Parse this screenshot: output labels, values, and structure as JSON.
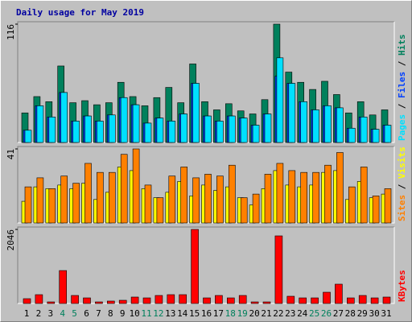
{
  "title": "Daily usage for May 2019",
  "chart_data": [
    {
      "type": "bar",
      "ylim": [
        0,
        116
      ],
      "yticks": [
        116
      ],
      "series": [
        {
          "name": "Hits",
          "color": "#00805C",
          "values": [
            29,
            45,
            40,
            75,
            39,
            41,
            37,
            39,
            59,
            45,
            36,
            44,
            54,
            39,
            77,
            40,
            32,
            38,
            31,
            28,
            42,
            116,
            69,
            59,
            52,
            60,
            47,
            29,
            40,
            27,
            32
          ]
        },
        {
          "name": "Files",
          "color": "#0040FF",
          "values": [
            12,
            36,
            25,
            49,
            21,
            26,
            21,
            27,
            44,
            37,
            19,
            24,
            21,
            28,
            58,
            26,
            21,
            26,
            24,
            17,
            28,
            65,
            58,
            40,
            32,
            36,
            34,
            14,
            25,
            13,
            17
          ]
        },
        {
          "name": "Pages",
          "color": "#00E0FF",
          "values": [
            12,
            36,
            25,
            49,
            21,
            26,
            21,
            27,
            44,
            37,
            19,
            24,
            21,
            28,
            58,
            26,
            21,
            26,
            24,
            17,
            28,
            83,
            58,
            40,
            32,
            36,
            34,
            14,
            25,
            13,
            17
          ]
        }
      ]
    },
    {
      "type": "bar",
      "ylim": [
        0,
        41
      ],
      "yticks": [
        41
      ],
      "series": [
        {
          "name": "Visits",
          "color": "#FFFF00",
          "values": [
            12,
            20,
            19,
            21,
            19,
            22,
            13,
            17,
            31,
            29,
            19,
            14,
            17,
            23,
            15,
            21,
            18,
            20,
            14,
            10,
            19,
            29,
            21,
            20,
            21,
            28,
            29,
            13,
            23,
            14,
            16
          ]
        },
        {
          "name": "Sites",
          "color": "#FF8000",
          "values": [
            20,
            25,
            19,
            26,
            22,
            33,
            28,
            28,
            38,
            41,
            21,
            14,
            26,
            31,
            25,
            27,
            26,
            32,
            14,
            16,
            27,
            33,
            29,
            28,
            28,
            32,
            39,
            20,
            31,
            15,
            19
          ]
        }
      ]
    },
    {
      "type": "bar",
      "ylim": [
        0,
        2046
      ],
      "yticks": [
        2046
      ],
      "categories": [
        "1",
        "2",
        "3",
        "4",
        "5",
        "6",
        "7",
        "8",
        "9",
        "10",
        "11",
        "12",
        "13",
        "14",
        "15",
        "16",
        "17",
        "18",
        "19",
        "20",
        "21",
        "22",
        "23",
        "24",
        "25",
        "26",
        "27",
        "28",
        "29",
        "30",
        "31"
      ],
      "category_colors": [
        "#000000",
        "#000000",
        "#000000",
        "#00805C",
        "#00805C",
        "#000000",
        "#000000",
        "#000000",
        "#000000",
        "#000000",
        "#00805C",
        "#00805C",
        "#000000",
        "#000000",
        "#000000",
        "#000000",
        "#000000",
        "#00805C",
        "#00805C",
        "#000000",
        "#000000",
        "#000000",
        "#000000",
        "#000000",
        "#00805C",
        "#00805C",
        "#000000",
        "#000000",
        "#000000",
        "#000000",
        "#000000"
      ],
      "series": [
        {
          "name": "KBytes",
          "color": "#FF0000",
          "values": [
            133,
            244,
            44,
            910,
            222,
            155,
            44,
            67,
            89,
            178,
            155,
            222,
            244,
            244,
            2046,
            155,
            222,
            155,
            222,
            44,
            44,
            1868,
            200,
            155,
            155,
            311,
            534,
            155,
            222,
            155,
            178
          ]
        }
      ]
    }
  ]
}
